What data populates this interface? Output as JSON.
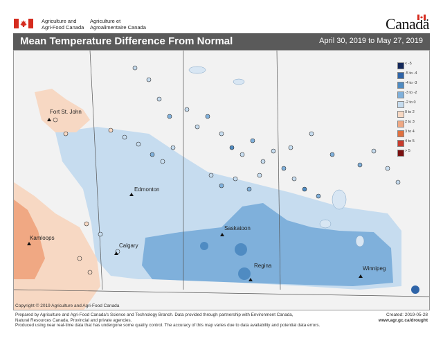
{
  "header": {
    "agency_en_line1": "Agriculture and",
    "agency_en_line2": "Agri-Food Canada",
    "agency_fr_line1": "Agriculture et",
    "agency_fr_line2": "Agroalimentaire Canada",
    "wordmark": "Canadä"
  },
  "map": {
    "title": "Mean Temperature Difference From Normal",
    "date_range": "April 30, 2019 to May 27, 2019"
  },
  "legend": [
    {
      "label": "< -5",
      "color": "#14285a"
    },
    {
      "label": "-5 to -4",
      "color": "#2f64a8"
    },
    {
      "label": "-4 to -3",
      "color": "#4f8bc2"
    },
    {
      "label": "-3 to -2",
      "color": "#7fb0db"
    },
    {
      "label": "-2 to 0",
      "color": "#c6dcef"
    },
    {
      "label": "0 to 2",
      "color": "#f7d8c3"
    },
    {
      "label": "2 to 3",
      "color": "#f0a883"
    },
    {
      "label": "3 to 4",
      "color": "#e0703f"
    },
    {
      "label": "4 to 5",
      "color": "#c73b2d"
    },
    {
      "label": "> 5",
      "color": "#7a1010"
    }
  ],
  "cities": [
    {
      "name": "Fort St. John"
    },
    {
      "name": "Edmonton"
    },
    {
      "name": "Kamloops"
    },
    {
      "name": "Calgary"
    },
    {
      "name": "Saskatoon"
    },
    {
      "name": "Regina"
    },
    {
      "name": "Winnipeg"
    }
  ],
  "copyright": "Copyright © 2019 Agriculture and Agri-Food Canada",
  "footer": {
    "line1": "Prepared by Agriculture and Agri-Food Canada's Science and Technology Branch. Data provided through partnership with Environment Canada,",
    "line2": "Natural Resources Canada, Provincial and private agencies.",
    "line3": "Produced using near real-time data that has undergone some quality control. The accuracy of this map varies due to data availability and potential data errors.",
    "created": "Created: 2019-05-28",
    "url": "www.agr.gc.ca/drought"
  }
}
